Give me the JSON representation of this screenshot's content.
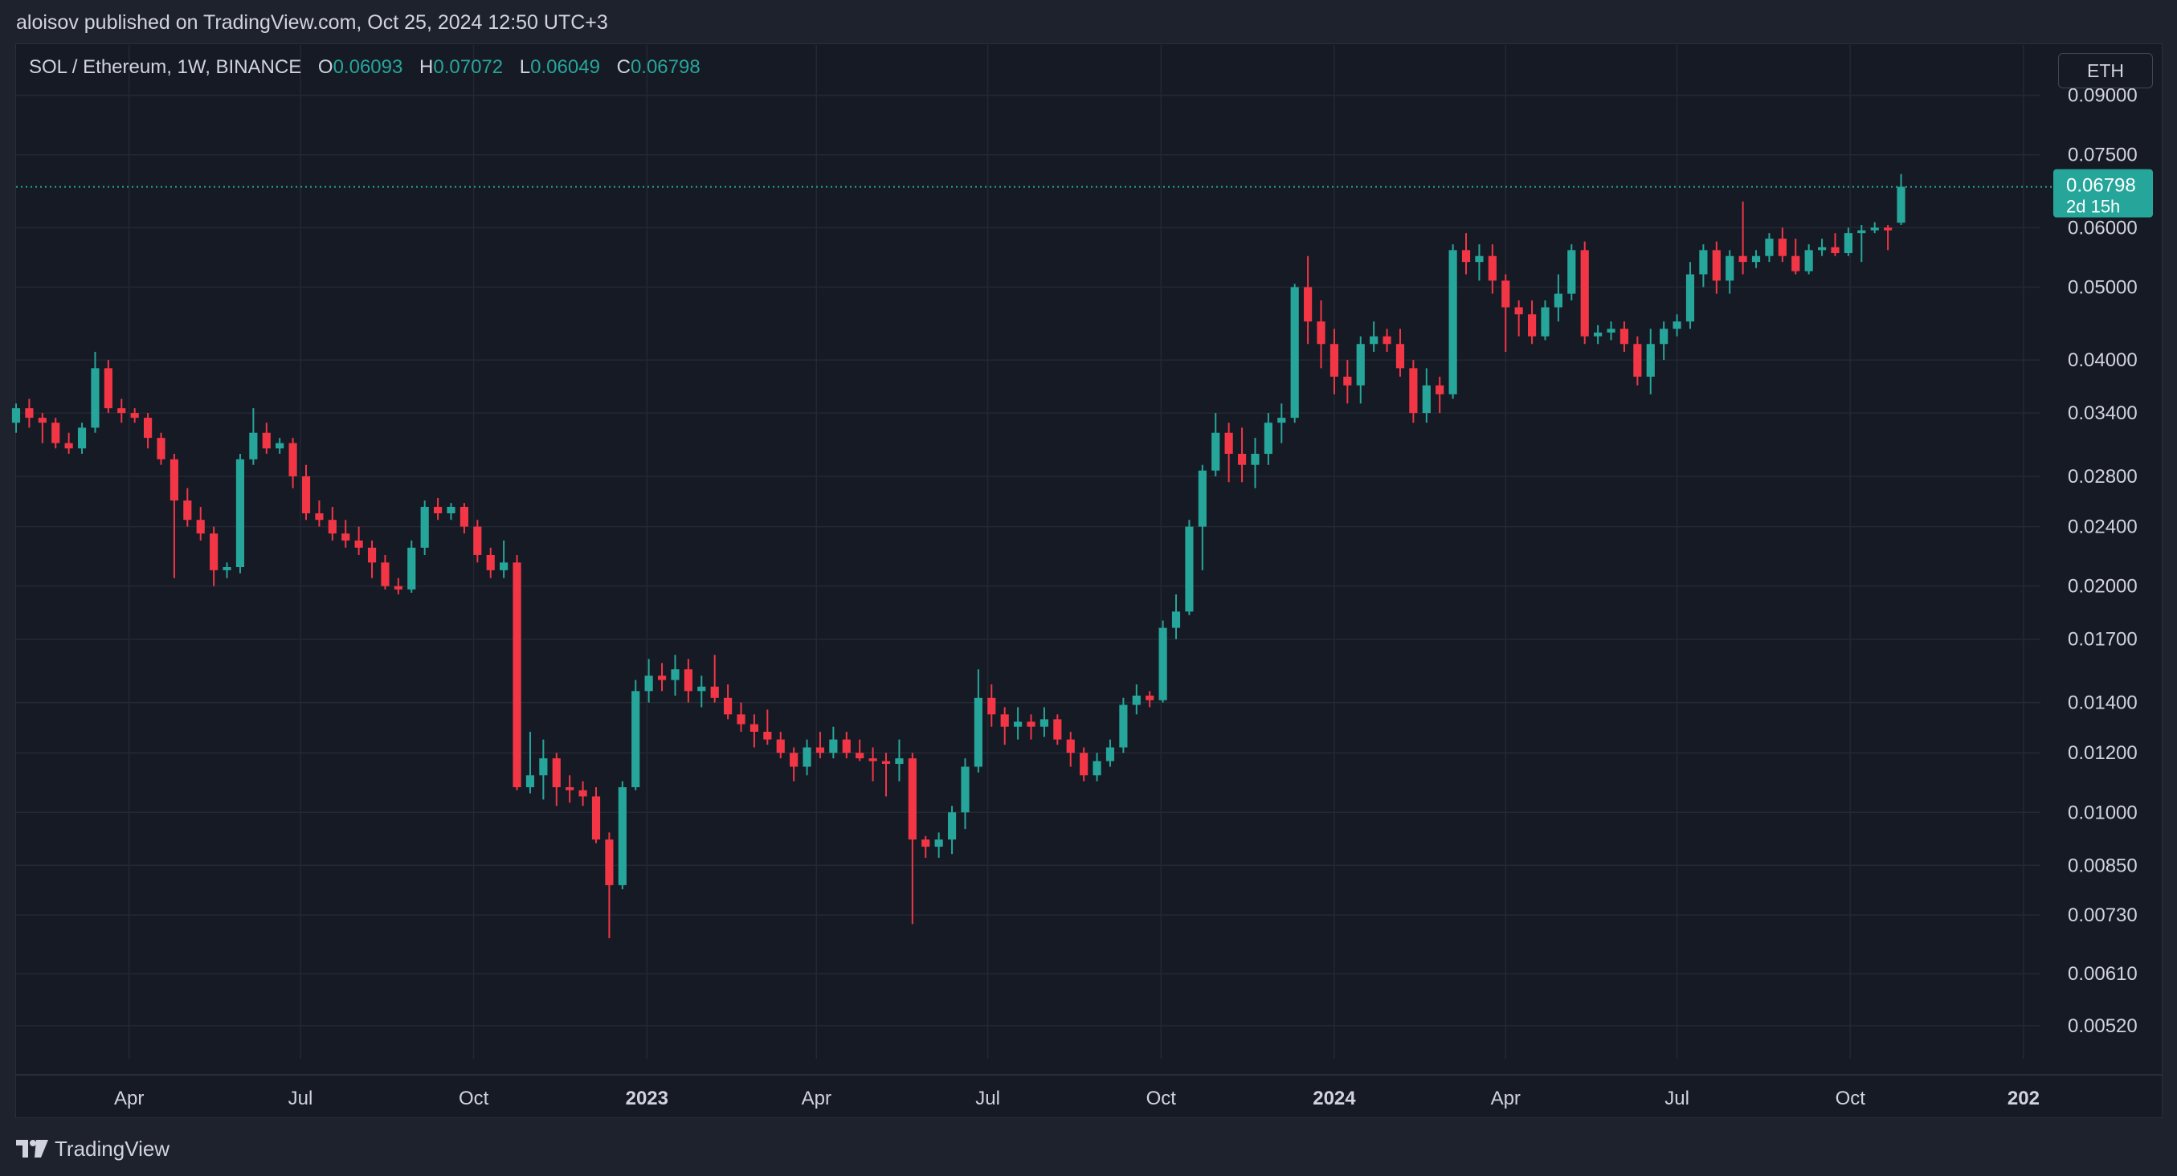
{
  "header": {
    "published_text": "aloisov published on TradingView.com, Oct 25, 2024 12:50 UTC+3"
  },
  "legend": {
    "symbol": "SOL / Ethereum, 1W, BINANCE",
    "open_label": "O",
    "open": "0.06093",
    "high_label": "H",
    "high": "0.07072",
    "low_label": "L",
    "low": "0.06049",
    "close_label": "C",
    "close": "0.06798"
  },
  "toolbar": {
    "currency_label": "ETH"
  },
  "footer": {
    "logo_text": "TradingView",
    "logo_icon": "tradingview-logo-icon"
  },
  "colors": {
    "up": "#26a69a",
    "down": "#f23645",
    "background": "#161a25",
    "grid": "#242833",
    "text": "#d1d4dc"
  },
  "chart_data": {
    "type": "candlestick",
    "interval": "1W",
    "scale": "log",
    "ylim": [
      0.0047,
      0.105
    ],
    "xlim": [
      "2022-01-31",
      "2025-01-10"
    ],
    "grid": true,
    "y_ticks": [
      "0.09000",
      "0.07500",
      "0.06000",
      "0.05000",
      "0.04000",
      "0.03400",
      "0.02800",
      "0.02400",
      "0.02000",
      "0.01700",
      "0.01400",
      "0.01200",
      "0.01000",
      "0.00850",
      "0.00730",
      "0.00610",
      "0.00520"
    ],
    "x_ticks": [
      {
        "date": "2022-04-01",
        "label": "Apr",
        "bold": false
      },
      {
        "date": "2022-07-01",
        "label": "Jul",
        "bold": false
      },
      {
        "date": "2022-10-01",
        "label": "Oct",
        "bold": false
      },
      {
        "date": "2023-01-01",
        "label": "2023",
        "bold": true
      },
      {
        "date": "2023-04-01",
        "label": "Apr",
        "bold": false
      },
      {
        "date": "2023-07-01",
        "label": "Jul",
        "bold": false
      },
      {
        "date": "2023-10-01",
        "label": "Oct",
        "bold": false
      },
      {
        "date": "2024-01-01",
        "label": "2024",
        "bold": true
      },
      {
        "date": "2024-04-01",
        "label": "Apr",
        "bold": false
      },
      {
        "date": "2024-07-01",
        "label": "Jul",
        "bold": false
      },
      {
        "date": "2024-10-01",
        "label": "Oct",
        "bold": false
      },
      {
        "date": "2025-01-01",
        "label": "202",
        "bold": true
      }
    ],
    "last_price": {
      "value": 0.06798,
      "label": "0.06798",
      "countdown": "2d 15h"
    },
    "first_date": "2022-01-31",
    "ohlc": [
      [
        0.033,
        0.035,
        0.032,
        0.0345
      ],
      [
        0.0345,
        0.0355,
        0.0325,
        0.0335
      ],
      [
        0.0335,
        0.034,
        0.031,
        0.033
      ],
      [
        0.033,
        0.0335,
        0.0305,
        0.031
      ],
      [
        0.031,
        0.032,
        0.03,
        0.0305
      ],
      [
        0.0305,
        0.033,
        0.03,
        0.0325
      ],
      [
        0.0325,
        0.041,
        0.032,
        0.039
      ],
      [
        0.039,
        0.04,
        0.034,
        0.0345
      ],
      [
        0.0345,
        0.0355,
        0.033,
        0.034
      ],
      [
        0.034,
        0.0345,
        0.033,
        0.0335
      ],
      [
        0.0335,
        0.034,
        0.0305,
        0.0315
      ],
      [
        0.0315,
        0.032,
        0.029,
        0.0295
      ],
      [
        0.0295,
        0.03,
        0.0205,
        0.026
      ],
      [
        0.026,
        0.027,
        0.024,
        0.0245
      ],
      [
        0.0245,
        0.0255,
        0.023,
        0.0235
      ],
      [
        0.0235,
        0.024,
        0.02,
        0.021
      ],
      [
        0.021,
        0.0215,
        0.0205,
        0.0212
      ],
      [
        0.0212,
        0.03,
        0.0208,
        0.0295
      ],
      [
        0.0295,
        0.0345,
        0.029,
        0.032
      ],
      [
        0.032,
        0.033,
        0.03,
        0.0305
      ],
      [
        0.0305,
        0.0315,
        0.03,
        0.031
      ],
      [
        0.031,
        0.0315,
        0.027,
        0.028
      ],
      [
        0.028,
        0.029,
        0.0245,
        0.025
      ],
      [
        0.025,
        0.026,
        0.024,
        0.0245
      ],
      [
        0.0245,
        0.0255,
        0.023,
        0.0235
      ],
      [
        0.0235,
        0.0245,
        0.0225,
        0.023
      ],
      [
        0.023,
        0.024,
        0.022,
        0.0225
      ],
      [
        0.0225,
        0.023,
        0.0205,
        0.0215
      ],
      [
        0.0215,
        0.022,
        0.0198,
        0.02
      ],
      [
        0.02,
        0.0205,
        0.0195,
        0.0198
      ],
      [
        0.0198,
        0.023,
        0.0196,
        0.0225
      ],
      [
        0.0225,
        0.026,
        0.022,
        0.0255
      ],
      [
        0.0255,
        0.0262,
        0.0245,
        0.025
      ],
      [
        0.025,
        0.0258,
        0.0245,
        0.0255
      ],
      [
        0.0255,
        0.0258,
        0.0235,
        0.024
      ],
      [
        0.024,
        0.0245,
        0.0215,
        0.022
      ],
      [
        0.022,
        0.0225,
        0.0205,
        0.021
      ],
      [
        0.021,
        0.023,
        0.0205,
        0.0215
      ],
      [
        0.0215,
        0.022,
        0.0107,
        0.0108
      ],
      [
        0.0108,
        0.0128,
        0.0106,
        0.0112
      ],
      [
        0.0112,
        0.0125,
        0.0104,
        0.0118
      ],
      [
        0.0118,
        0.012,
        0.0102,
        0.0108
      ],
      [
        0.0108,
        0.0112,
        0.0103,
        0.0107
      ],
      [
        0.0107,
        0.011,
        0.0102,
        0.0105
      ],
      [
        0.0105,
        0.0108,
        0.0091,
        0.0092
      ],
      [
        0.0092,
        0.0094,
        0.0068,
        0.008
      ],
      [
        0.008,
        0.011,
        0.0079,
        0.0108
      ],
      [
        0.0108,
        0.015,
        0.0107,
        0.0145
      ],
      [
        0.0145,
        0.016,
        0.014,
        0.0152
      ],
      [
        0.0152,
        0.0158,
        0.0145,
        0.015
      ],
      [
        0.015,
        0.0162,
        0.0143,
        0.0155
      ],
      [
        0.0155,
        0.016,
        0.014,
        0.0145
      ],
      [
        0.0145,
        0.0152,
        0.0138,
        0.0147
      ],
      [
        0.0147,
        0.0162,
        0.014,
        0.0142
      ],
      [
        0.0142,
        0.0148,
        0.0133,
        0.0135
      ],
      [
        0.0135,
        0.014,
        0.0128,
        0.0131
      ],
      [
        0.0131,
        0.0135,
        0.0122,
        0.0128
      ],
      [
        0.0128,
        0.0137,
        0.0123,
        0.0125
      ],
      [
        0.0125,
        0.0128,
        0.0118,
        0.012
      ],
      [
        0.012,
        0.0122,
        0.011,
        0.0115
      ],
      [
        0.0115,
        0.0125,
        0.0112,
        0.0122
      ],
      [
        0.0122,
        0.0128,
        0.0118,
        0.012
      ],
      [
        0.012,
        0.013,
        0.0118,
        0.0125
      ],
      [
        0.0125,
        0.0128,
        0.0118,
        0.012
      ],
      [
        0.012,
        0.0125,
        0.0117,
        0.0118
      ],
      [
        0.0118,
        0.0122,
        0.011,
        0.0117
      ],
      [
        0.0117,
        0.012,
        0.0105,
        0.0116
      ],
      [
        0.0116,
        0.0125,
        0.011,
        0.0118
      ],
      [
        0.0118,
        0.012,
        0.0071,
        0.0092
      ],
      [
        0.0092,
        0.0093,
        0.0087,
        0.009
      ],
      [
        0.009,
        0.0094,
        0.0087,
        0.0092
      ],
      [
        0.0092,
        0.0102,
        0.0088,
        0.01
      ],
      [
        0.01,
        0.0118,
        0.0095,
        0.0115
      ],
      [
        0.0115,
        0.0155,
        0.0113,
        0.0142
      ],
      [
        0.0142,
        0.0148,
        0.013,
        0.0135
      ],
      [
        0.0135,
        0.0138,
        0.0123,
        0.013
      ],
      [
        0.013,
        0.0138,
        0.0125,
        0.0132
      ],
      [
        0.0132,
        0.0135,
        0.0125,
        0.013
      ],
      [
        0.013,
        0.0138,
        0.0126,
        0.0133
      ],
      [
        0.0133,
        0.0135,
        0.0123,
        0.0125
      ],
      [
        0.0125,
        0.0128,
        0.0115,
        0.012
      ],
      [
        0.012,
        0.0122,
        0.011,
        0.0112
      ],
      [
        0.0112,
        0.012,
        0.011,
        0.0117
      ],
      [
        0.0117,
        0.0125,
        0.0115,
        0.0122
      ],
      [
        0.0122,
        0.0142,
        0.012,
        0.0139
      ],
      [
        0.0139,
        0.0148,
        0.0135,
        0.0143
      ],
      [
        0.0143,
        0.0145,
        0.0138,
        0.0141
      ],
      [
        0.0141,
        0.018,
        0.014,
        0.0176
      ],
      [
        0.0176,
        0.0195,
        0.017,
        0.0185
      ],
      [
        0.0185,
        0.0245,
        0.0183,
        0.024
      ],
      [
        0.024,
        0.029,
        0.021,
        0.0285
      ],
      [
        0.0285,
        0.034,
        0.028,
        0.032
      ],
      [
        0.032,
        0.033,
        0.0275,
        0.03
      ],
      [
        0.03,
        0.0325,
        0.0275,
        0.029
      ],
      [
        0.029,
        0.0315,
        0.027,
        0.03
      ],
      [
        0.03,
        0.034,
        0.029,
        0.033
      ],
      [
        0.033,
        0.035,
        0.031,
        0.0335
      ],
      [
        0.0335,
        0.0505,
        0.033,
        0.05
      ],
      [
        0.05,
        0.055,
        0.042,
        0.045
      ],
      [
        0.045,
        0.048,
        0.039,
        0.042
      ],
      [
        0.042,
        0.044,
        0.036,
        0.038
      ],
      [
        0.038,
        0.04,
        0.035,
        0.037
      ],
      [
        0.037,
        0.043,
        0.035,
        0.042
      ],
      [
        0.042,
        0.045,
        0.041,
        0.043
      ],
      [
        0.043,
        0.044,
        0.041,
        0.042
      ],
      [
        0.042,
        0.044,
        0.038,
        0.039
      ],
      [
        0.039,
        0.04,
        0.033,
        0.034
      ],
      [
        0.034,
        0.039,
        0.033,
        0.037
      ],
      [
        0.037,
        0.038,
        0.034,
        0.036
      ],
      [
        0.036,
        0.057,
        0.0355,
        0.056
      ],
      [
        0.056,
        0.059,
        0.052,
        0.054
      ],
      [
        0.054,
        0.057,
        0.051,
        0.055
      ],
      [
        0.055,
        0.057,
        0.049,
        0.051
      ],
      [
        0.051,
        0.052,
        0.041,
        0.047
      ],
      [
        0.047,
        0.048,
        0.043,
        0.046
      ],
      [
        0.046,
        0.048,
        0.042,
        0.043
      ],
      [
        0.043,
        0.048,
        0.0425,
        0.047
      ],
      [
        0.047,
        0.052,
        0.045,
        0.049
      ],
      [
        0.049,
        0.057,
        0.048,
        0.056
      ],
      [
        0.056,
        0.0575,
        0.042,
        0.043
      ],
      [
        0.043,
        0.0445,
        0.042,
        0.0435
      ],
      [
        0.0435,
        0.045,
        0.0425,
        0.044
      ],
      [
        0.044,
        0.045,
        0.041,
        0.042
      ],
      [
        0.042,
        0.043,
        0.037,
        0.038
      ],
      [
        0.038,
        0.044,
        0.036,
        0.042
      ],
      [
        0.042,
        0.045,
        0.04,
        0.044
      ],
      [
        0.044,
        0.046,
        0.043,
        0.045
      ],
      [
        0.045,
        0.054,
        0.044,
        0.052
      ],
      [
        0.052,
        0.057,
        0.05,
        0.056
      ],
      [
        0.056,
        0.0575,
        0.049,
        0.051
      ],
      [
        0.051,
        0.056,
        0.049,
        0.055
      ],
      [
        0.055,
        0.065,
        0.052,
        0.054
      ],
      [
        0.054,
        0.056,
        0.053,
        0.055
      ],
      [
        0.055,
        0.059,
        0.054,
        0.058
      ],
      [
        0.058,
        0.06,
        0.054,
        0.055
      ],
      [
        0.055,
        0.058,
        0.052,
        0.0525
      ],
      [
        0.0525,
        0.057,
        0.052,
        0.056
      ],
      [
        0.056,
        0.058,
        0.055,
        0.0565
      ],
      [
        0.0565,
        0.059,
        0.055,
        0.0555
      ],
      [
        0.0555,
        0.06,
        0.055,
        0.059
      ],
      [
        0.059,
        0.0605,
        0.054,
        0.0595
      ],
      [
        0.0595,
        0.061,
        0.059,
        0.06
      ],
      [
        0.06,
        0.0605,
        0.056,
        0.0595
      ],
      [
        0.0609,
        0.0707,
        0.0605,
        0.068
      ]
    ]
  }
}
